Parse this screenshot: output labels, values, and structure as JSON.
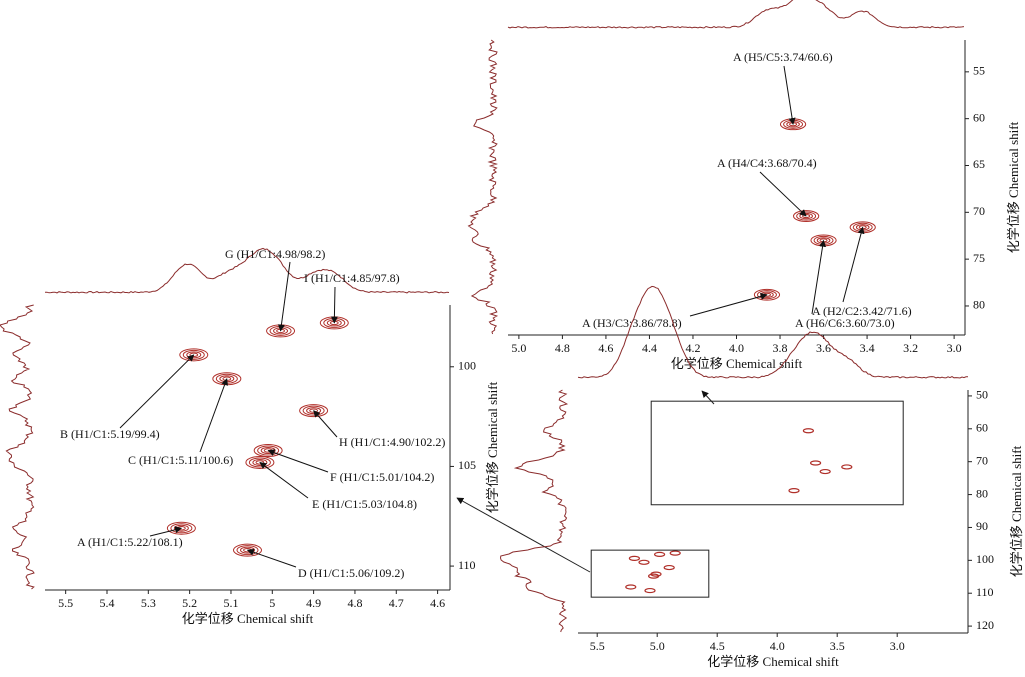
{
  "chart_data": [
    {
      "type": "scatter",
      "xlabel": "化学位移 Chemical shift",
      "ylabel": "化学位移 Chemical shift",
      "xlim": [
        5.55,
        4.57
      ],
      "ylim": [
        96.9,
        111.2
      ],
      "xticks": [
        5.5,
        5.4,
        5.3,
        5.2,
        5.1,
        5.0,
        4.9,
        4.8,
        4.7,
        4.6
      ],
      "yticks": [
        100,
        105,
        110
      ],
      "color": "#b0302a",
      "labels": [
        "G (H1/C1:4.98/98.2)",
        "I (H1/C1:4.85/97.8)",
        "B (H1/C1:5.19/99.4)",
        "C (H1/C1:5.11/100.6)",
        "H (H1/C1:4.90/102.2)",
        "F (H1/C1:5.01/104.2)",
        "E (H1/C1:5.03/104.8)",
        "A (H1/C1:5.22/108.1)",
        "D (H1/C1:5.06/109.2)"
      ],
      "x": [
        4.98,
        4.85,
        5.19,
        5.11,
        4.9,
        5.01,
        5.03,
        5.22,
        5.06
      ],
      "y": [
        98.2,
        97.8,
        99.4,
        100.6,
        102.2,
        104.2,
        104.8,
        108.1,
        109.2
      ]
    },
    {
      "type": "scatter",
      "ylabel": "化学位移 Chemical shift",
      "xlabel": "化学位移 Chemical shift",
      "xlim": [
        5.05,
        2.95
      ],
      "ylim": [
        51.6,
        83.1
      ],
      "xticks": [
        {
          "value": 5,
          "label": "5.0"
        },
        4.8,
        4.6,
        4.4,
        4.2,
        {
          "value": 4,
          "label": "4.0"
        },
        3.8,
        3.6,
        3.4,
        3.2,
        {
          "value": 3,
          "label": "3.0"
        }
      ],
      "yticks": [
        55,
        60,
        65,
        70,
        75,
        80
      ],
      "color": "#b0302a",
      "labels": [
        "A (H5/C5:3.74/60.6)",
        "A (H4/C4:3.68/70.4)",
        "A (H2/C2:3.42/71.6)",
        "A (H6/C6:3.60/73.0)",
        "A (H3/C3:3.86/78.8)"
      ],
      "x": [
        3.74,
        3.68,
        3.42,
        3.6,
        3.86
      ],
      "y": [
        60.6,
        70.4,
        71.6,
        73.0,
        78.8
      ]
    },
    {
      "type": "overview",
      "xlabel": "化学位移 Chemical shift",
      "ylabel": "化学位移 Chemical shift",
      "xlim": [
        5.66,
        2.41
      ],
      "ylim": [
        48.2,
        122.1
      ],
      "xticks": [
        5.5,
        {
          "value": 5,
          "label": "5.0"
        },
        4.5,
        {
          "value": 4,
          "label": "4.0"
        },
        3.5,
        {
          "value": 3,
          "label": "3.0"
        }
      ],
      "yticks": [
        50,
        60,
        70,
        80,
        90,
        100,
        110,
        120
      ],
      "color": "#b0302a"
    }
  ]
}
